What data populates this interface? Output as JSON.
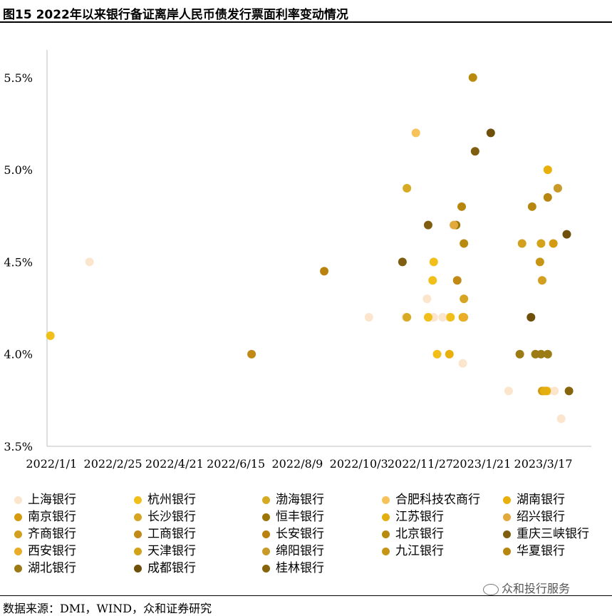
{
  "page_title": "图15 2022年以来银行备证离岸人民币债发行票面利率变动情况",
  "source_text": "数据来源：DMI，WIND，众和证券研究",
  "watermark_text": "众和投行服务",
  "chart_data": {
    "type": "scatter",
    "x_tick_labels": [
      "2022/1/1",
      "2022/2/25",
      "2022/4/21",
      "2022/6/15",
      "2022/8/9",
      "2022/10/3",
      "2022/11/27",
      "2023/1/21",
      "2023/3/17"
    ],
    "y_tick_labels": [
      "3.5%",
      "4.0%",
      "4.5%",
      "5.0%",
      "5.5%"
    ],
    "xlim": [
      "2021-12-28",
      "2023-04-29"
    ],
    "ylim": [
      3.5,
      5.65
    ],
    "grid": false,
    "legend_placement": "bottom",
    "series": [
      {
        "name": "上海银行",
        "color": "#FBE5CC",
        "points": [
          [
            "2022-02-04",
            4.5
          ],
          [
            "2022-10-12",
            4.2
          ],
          [
            "2022-11-14",
            4.2
          ],
          [
            "2022-12-03",
            4.3
          ],
          [
            "2022-12-05",
            4.2
          ],
          [
            "2022-12-09",
            4.2
          ],
          [
            "2022-12-17",
            4.2
          ],
          [
            "2022-12-23",
            4.2
          ],
          [
            "2023-01-04",
            3.95
          ],
          [
            "2023-02-14",
            3.8
          ],
          [
            "2023-03-22",
            3.8
          ],
          [
            "2023-03-27",
            3.8
          ],
          [
            "2023-04-02",
            3.65
          ]
        ]
      },
      {
        "name": "杭州银行",
        "color": "#F1BF1A",
        "points": [
          [
            "2021-12-31",
            4.1
          ],
          [
            "2022-12-04",
            4.2
          ],
          [
            "2022-12-09",
            4.5
          ],
          [
            "2022-12-12",
            4.0
          ],
          [
            "2022-12-24",
            4.2
          ],
          [
            "2022-12-08",
            4.4
          ]
        ]
      },
      {
        "name": "渤海银行",
        "color": "#D7AA24",
        "points": [
          [
            "2022-11-15",
            4.9
          ],
          [
            "2022-11-15",
            4.2
          ]
        ]
      },
      {
        "name": "合肥科技农商行",
        "color": "#F8C25A",
        "points": [
          [
            "2022-11-23",
            5.2
          ]
        ]
      },
      {
        "name": "湖南银行",
        "color": "#E9AF0A",
        "points": [
          [
            "2022-12-23",
            4.0
          ],
          [
            "2023-03-21",
            5.0
          ],
          [
            "2023-03-20",
            3.8
          ]
        ]
      },
      {
        "name": "南京银行",
        "color": "#D49A10",
        "points": [
          [
            "2023-03-16",
            3.8
          ],
          [
            "2023-03-26",
            4.6
          ]
        ]
      },
      {
        "name": "长沙银行",
        "color": "#D6A524",
        "points": [
          [
            "2023-01-05",
            4.3
          ]
        ]
      },
      {
        "name": "恒丰银行",
        "color": "#9E7608",
        "points": [
          [
            "2022-12-29",
            4.7
          ]
        ]
      },
      {
        "name": "江苏银行",
        "color": "#E3AE10",
        "points": [
          [
            "2023-01-04",
            4.2
          ],
          [
            "2023-03-18",
            3.8
          ]
        ]
      },
      {
        "name": "绍兴银行",
        "color": "#E2A93C",
        "points": [
          [
            "2022-12-27",
            4.7
          ]
        ]
      },
      {
        "name": "齐商银行",
        "color": "#D29F1E",
        "points": [
          [
            "2023-02-26",
            4.6
          ],
          [
            "2023-03-16",
            4.4
          ]
        ]
      },
      {
        "name": "工商银行",
        "color": "#C18A17",
        "points": [
          [
            "2022-06-29",
            4.0
          ],
          [
            "2022-12-30",
            4.4
          ]
        ]
      },
      {
        "name": "长安银行",
        "color": "#B9820C",
        "points": [
          [
            "2022-09-02",
            4.45
          ]
        ]
      },
      {
        "name": "北京银行",
        "color": "#B88A10",
        "points": [
          [
            "2023-01-13",
            5.5
          ],
          [
            "2023-01-05",
            4.6
          ]
        ]
      },
      {
        "name": "重庆三峡银行",
        "color": "#7F5E10",
        "points": [
          [
            "2022-11-11",
            4.5
          ],
          [
            "2022-12-04",
            4.7
          ],
          [
            "2023-01-15",
            5.1
          ]
        ]
      },
      {
        "name": "西安银行",
        "color": "#E9AD2A",
        "points": [
          [
            "2023-01-05",
            4.2
          ]
        ]
      },
      {
        "name": "天津银行",
        "color": "#D2A218",
        "points": [
          [
            "2023-03-15",
            4.6
          ]
        ]
      },
      {
        "name": "绵阳银行",
        "color": "#C99A27",
        "points": [
          [
            "2023-03-30",
            4.9
          ]
        ]
      },
      {
        "name": "九江银行",
        "color": "#C79516",
        "points": [
          [
            "2023-03-14",
            4.5
          ]
        ]
      },
      {
        "name": "华夏银行",
        "color": "#B7860F",
        "points": [
          [
            "2023-01-03",
            4.8
          ],
          [
            "2023-03-07",
            4.8
          ],
          [
            "2023-03-21",
            4.85
          ]
        ]
      },
      {
        "name": "湖北银行",
        "color": "#9C7B14",
        "points": [
          [
            "2023-02-24",
            4.0
          ],
          [
            "2023-03-10",
            4.0
          ],
          [
            "2023-03-15",
            4.0
          ],
          [
            "2023-03-21",
            4.0
          ]
        ]
      },
      {
        "name": "成都银行",
        "color": "#6E500A",
        "points": [
          [
            "2023-01-29",
            5.2
          ],
          [
            "2023-03-06",
            4.2
          ],
          [
            "2023-04-07",
            4.65
          ]
        ]
      },
      {
        "name": "桂林银行",
        "color": "#86650D",
        "points": [
          [
            "2023-04-09",
            3.8
          ]
        ]
      }
    ]
  }
}
